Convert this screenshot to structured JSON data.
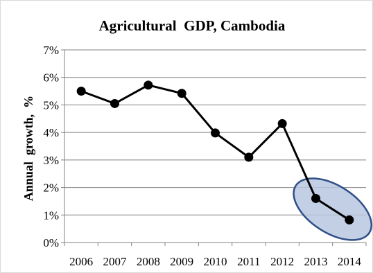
{
  "chart_data": {
    "type": "line",
    "title": "Agricultural  GDP, Cambodia",
    "xlabel": "",
    "ylabel": "Annual  growth,  %",
    "categories": [
      "2006",
      "2007",
      "2008",
      "2009",
      "2010",
      "2011",
      "2012",
      "2013",
      "2014"
    ],
    "series": [
      {
        "values": [
          5.5,
          5.05,
          5.72,
          5.42,
          3.98,
          3.1,
          4.32,
          1.6,
          0.82
        ]
      }
    ],
    "ylim": [
      0,
      7
    ],
    "yticks": [
      "0%",
      "1%",
      "2%",
      "3%",
      "4%",
      "5%",
      "6%",
      "7%"
    ],
    "grid": true,
    "highlight": {
      "categories": [
        "2013",
        "2014"
      ],
      "shape": "ellipse",
      "color": "#4a6fa5"
    },
    "colors": {
      "line": "#000000",
      "marker": "#000000",
      "grid": "#808080",
      "highlight_fill": "#b8c7e0",
      "highlight_stroke": "#2f4f86"
    }
  }
}
